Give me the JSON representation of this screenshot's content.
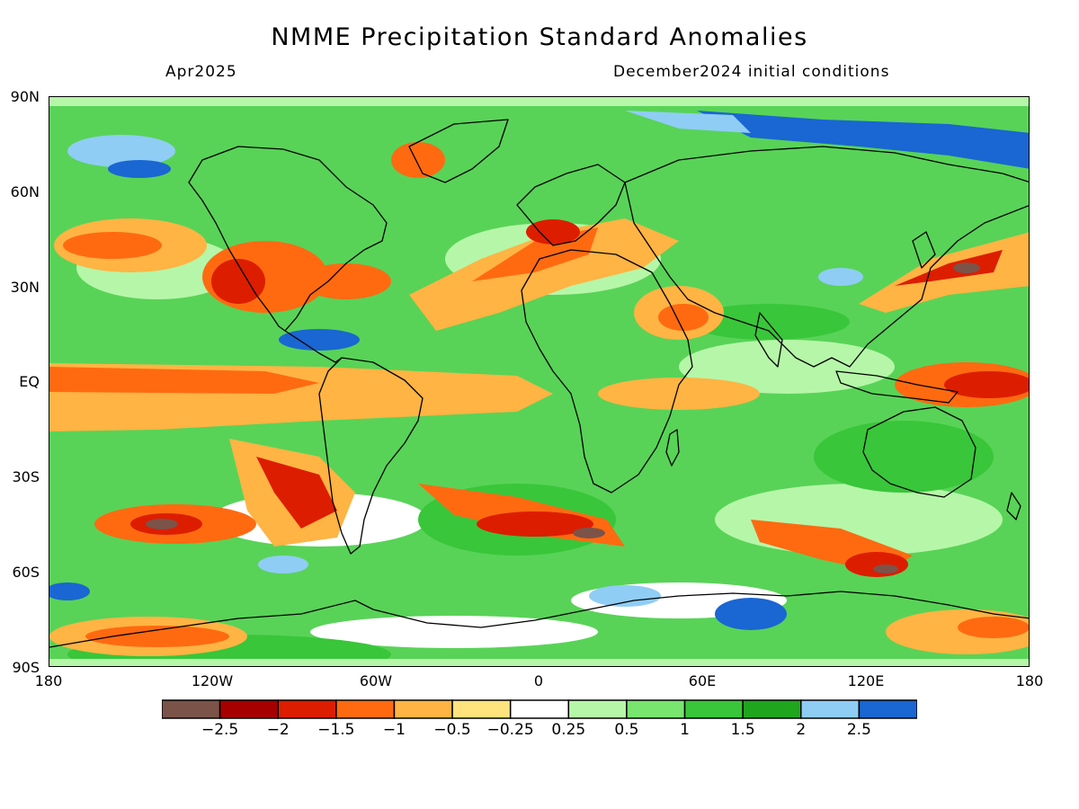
{
  "title": "NMME Precipitation Standard Anomalies",
  "subtitle_left": "Apr2025",
  "subtitle_right": "December2024 initial conditions",
  "lat_labels": [
    "90N",
    "60N",
    "30N",
    "EQ",
    "30S",
    "60S",
    "90S"
  ],
  "lon_labels": [
    "180",
    "120W",
    "60W",
    "0",
    "60E",
    "120E",
    "180"
  ],
  "colorbar": {
    "colors": [
      "#7b5349",
      "#a60000",
      "#dd1d00",
      "#ff6a11",
      "#ffb443",
      "#ffe37d",
      "#ffffff",
      "#b6f6a8",
      "#78e56e",
      "#39c63a",
      "#1fa61e",
      "#8fcdf5",
      "#1a66d2"
    ],
    "labels": [
      "−2.5",
      "−2",
      "−1.5",
      "−1",
      "−0.5",
      "−0.25",
      "0.25",
      "0.5",
      "1",
      "1.5",
      "2",
      "2.5"
    ]
  },
  "map": {
    "ocean_base_color": "#58d357",
    "coastline_color": "#000000"
  }
}
